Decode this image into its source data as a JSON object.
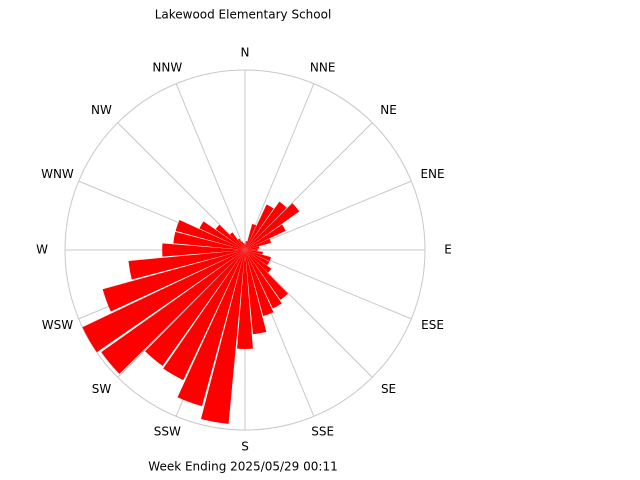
{
  "chart_data": {
    "type": "windrose",
    "title": "Lakewood Elementary School",
    "subtitle": "Week Ending 2025/05/29 00:11",
    "directions": [
      "N",
      "NNE",
      "NE",
      "ENE",
      "E",
      "ESE",
      "SE",
      "SSE",
      "S",
      "SSW",
      "SW",
      "WSW",
      "W",
      "WNW",
      "NW",
      "NNW"
    ],
    "values": [
      0.03,
      0.05,
      0.15,
      0.28,
      0.33,
      0.37,
      0.25,
      0.15,
      0.08,
      0.07,
      0.1,
      0.15,
      0.15,
      0.18,
      0.34,
      0.36,
      0.38,
      0.47,
      0.55,
      0.97,
      0.9,
      0.8,
      0.79,
      0.98,
      1.0,
      0.82,
      0.65,
      0.46,
      0.4,
      0.4,
      0.28,
      0.2,
      0.12,
      0.07,
      0.05,
      0.04
    ],
    "rlim": [
      0,
      1
    ],
    "color": "#ff0000",
    "grid_color": "#c8c8c8"
  }
}
